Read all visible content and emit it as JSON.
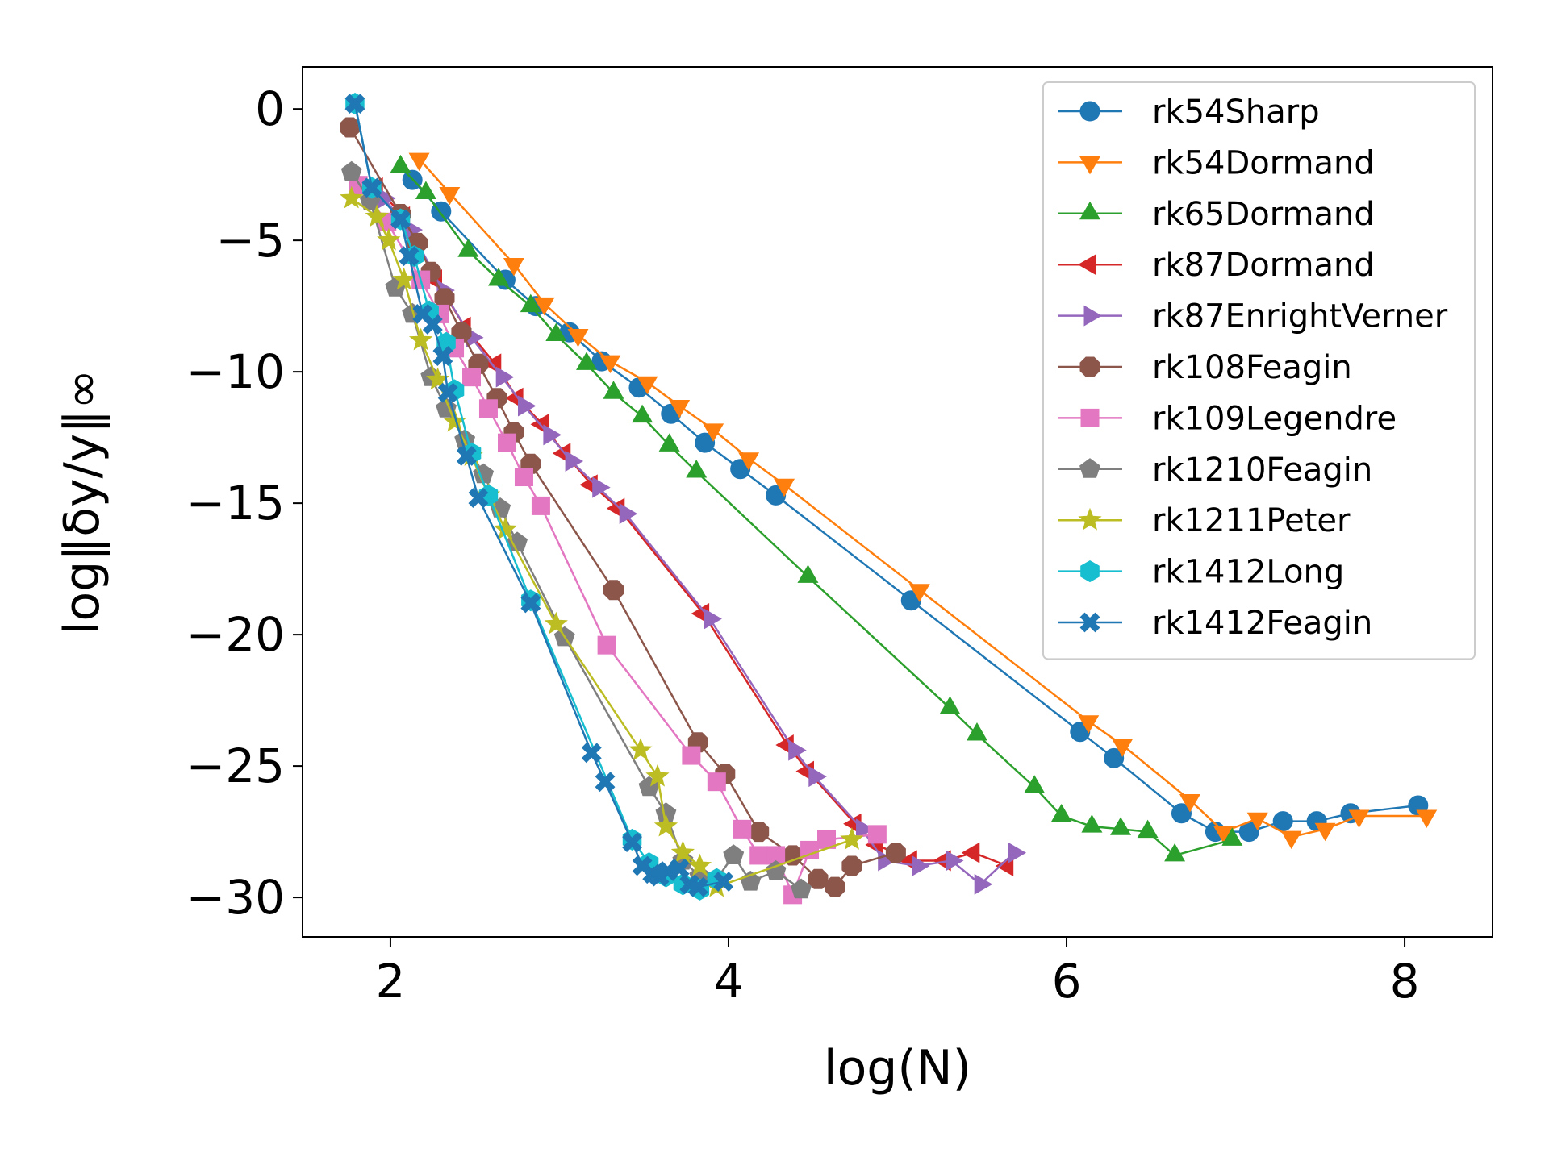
{
  "chart_data": {
    "type": "line",
    "xlabel": "log(N)",
    "ylabel": "log‖δy/y‖∞",
    "xlim": [
      1.48,
      8.52
    ],
    "ylim": [
      -31.5,
      1.6
    ],
    "xticks": [
      2,
      4,
      6,
      8
    ],
    "yticks": [
      0,
      -5,
      -10,
      -15,
      -20,
      -25,
      -30
    ],
    "xtick_labels": [
      "2",
      "4",
      "6",
      "8"
    ],
    "ytick_labels": [
      "0",
      "−5",
      "−10",
      "−15",
      "−20",
      "−25",
      "−30"
    ],
    "grid": false,
    "legend_position": "top-right",
    "series": [
      {
        "name": "rk54Sharp",
        "color": "#1f77b4",
        "marker": "circle",
        "x": [
          2.13,
          2.3,
          2.68,
          2.86,
          3.06,
          3.25,
          3.47,
          3.66,
          3.86,
          4.07,
          4.28,
          5.08,
          6.08,
          6.28,
          6.68,
          6.88,
          7.08,
          7.28,
          7.48,
          7.68,
          8.08
        ],
        "y": [
          -2.7,
          -3.9,
          -6.5,
          -7.5,
          -8.5,
          -9.6,
          -10.6,
          -11.6,
          -12.7,
          -13.7,
          -14.7,
          -18.7,
          -23.7,
          -24.7,
          -26.8,
          -27.5,
          -27.5,
          -27.1,
          -27.1,
          -26.8,
          -26.5
        ]
      },
      {
        "name": "rk54Dormand",
        "color": "#ff7f0e",
        "marker": "triangle-down",
        "x": [
          2.17,
          2.35,
          2.73,
          2.91,
          3.11,
          3.3,
          3.52,
          3.71,
          3.91,
          4.12,
          4.33,
          5.13,
          6.13,
          6.33,
          6.73,
          6.93,
          7.13,
          7.33,
          7.53,
          7.73,
          8.13
        ],
        "y": [
          -1.9,
          -3.2,
          -5.9,
          -7.4,
          -8.6,
          -9.6,
          -10.4,
          -11.3,
          -12.2,
          -13.3,
          -14.3,
          -18.3,
          -23.3,
          -24.2,
          -26.3,
          -27.5,
          -27.0,
          -27.7,
          -27.4,
          -26.9,
          -26.9
        ]
      },
      {
        "name": "rk65Dormand",
        "color": "#2ca02c",
        "marker": "triangle-up",
        "x": [
          2.06,
          2.21,
          2.46,
          2.64,
          2.83,
          2.98,
          3.16,
          3.32,
          3.49,
          3.65,
          3.81,
          4.47,
          5.31,
          5.47,
          5.81,
          5.97,
          6.15,
          6.32,
          6.48,
          6.64,
          6.98
        ],
        "y": [
          -2.2,
          -3.2,
          -5.4,
          -6.5,
          -7.5,
          -8.6,
          -9.7,
          -10.8,
          -11.7,
          -12.8,
          -13.8,
          -17.8,
          -22.8,
          -23.8,
          -25.8,
          -26.9,
          -27.3,
          -27.4,
          -27.5,
          -28.4,
          -27.8
        ]
      },
      {
        "name": "rk87Dormand",
        "color": "#d62728",
        "marker": "triangle-left",
        "x": [
          1.92,
          2.08,
          2.27,
          2.44,
          2.62,
          2.75,
          2.9,
          3.03,
          3.19,
          3.35,
          3.85,
          4.35,
          4.47,
          4.75,
          4.88,
          5.08,
          5.28,
          5.45,
          5.65
        ],
        "y": [
          -3.0,
          -4.1,
          -6.5,
          -8.3,
          -9.7,
          -11.0,
          -12.0,
          -13.1,
          -14.3,
          -15.2,
          -19.2,
          -24.2,
          -25.2,
          -27.2,
          -28.0,
          -28.6,
          -28.6,
          -28.3,
          -28.8
        ]
      },
      {
        "name": "rk87EnrightVerner",
        "color": "#9467bd",
        "marker": "triangle-right",
        "x": [
          1.96,
          2.12,
          2.31,
          2.48,
          2.66,
          2.79,
          2.94,
          3.07,
          3.23,
          3.39,
          3.89,
          4.39,
          4.51,
          4.79,
          4.92,
          5.12,
          5.32,
          5.49,
          5.69
        ],
        "y": [
          -3.4,
          -4.6,
          -6.9,
          -8.7,
          -10.2,
          -11.3,
          -12.4,
          -13.4,
          -14.4,
          -15.4,
          -19.4,
          -24.4,
          -25.4,
          -27.4,
          -28.6,
          -28.8,
          -28.6,
          -29.5,
          -28.3
        ]
      },
      {
        "name": "rk108Feagin",
        "color": "#8c564b",
        "marker": "octagon",
        "x": [
          1.76,
          2.06,
          2.16,
          2.24,
          2.32,
          2.42,
          2.52,
          2.63,
          2.73,
          2.83,
          3.32,
          3.82,
          3.98,
          4.18,
          4.38,
          4.53,
          4.63,
          4.73,
          4.99
        ],
        "y": [
          -0.7,
          -4.0,
          -5.1,
          -6.2,
          -7.2,
          -8.5,
          -9.7,
          -11.0,
          -12.3,
          -13.5,
          -18.3,
          -24.1,
          -25.3,
          -27.5,
          -28.4,
          -29.3,
          -29.6,
          -28.8,
          -28.3
        ]
      },
      {
        "name": "rk109Legendre",
        "color": "#e377c2",
        "marker": "square",
        "x": [
          1.81,
          1.98,
          2.18,
          2.29,
          2.38,
          2.48,
          2.58,
          2.69,
          2.79,
          2.89,
          3.28,
          3.78,
          3.93,
          4.08,
          4.18,
          4.28,
          4.38,
          4.48,
          4.58,
          4.88
        ],
        "y": [
          -2.9,
          -4.3,
          -6.5,
          -7.8,
          -9.1,
          -10.2,
          -11.4,
          -12.7,
          -14.0,
          -15.1,
          -20.4,
          -24.6,
          -25.6,
          -27.4,
          -28.4,
          -28.4,
          -29.9,
          -28.2,
          -27.8,
          -27.6
        ]
      },
      {
        "name": "rk1210Feagin",
        "color": "#7f7f7f",
        "marker": "pentagon",
        "x": [
          1.77,
          1.88,
          2.03,
          2.13,
          2.24,
          2.33,
          2.44,
          2.55,
          2.65,
          2.75,
          3.03,
          3.53,
          3.63,
          3.73,
          3.83,
          3.93,
          4.03,
          4.13,
          4.28,
          4.43
        ],
        "y": [
          -2.4,
          -3.5,
          -6.8,
          -7.8,
          -10.2,
          -11.4,
          -12.6,
          -13.9,
          -15.2,
          -16.5,
          -20.1,
          -25.8,
          -26.8,
          -28.6,
          -29.2,
          -29.3,
          -28.4,
          -29.4,
          -29.0,
          -29.7
        ]
      },
      {
        "name": "rk1211Peter",
        "color": "#bcbd22",
        "marker": "star",
        "x": [
          1.77,
          1.92,
          1.99,
          2.08,
          2.18,
          2.28,
          2.38,
          2.48,
          2.58,
          2.68,
          2.98,
          3.48,
          3.58,
          3.63,
          3.73,
          3.83,
          3.93,
          4.73
        ],
        "y": [
          -3.4,
          -4.1,
          -5.0,
          -6.5,
          -8.8,
          -10.3,
          -11.9,
          -13.2,
          -14.7,
          -16.0,
          -19.6,
          -24.4,
          -25.4,
          -27.3,
          -28.3,
          -28.8,
          -29.6,
          -27.8
        ]
      },
      {
        "name": "rk1412Long",
        "color": "#17becf",
        "marker": "hexagon",
        "x": [
          1.79,
          1.89,
          2.06,
          2.14,
          2.23,
          2.33,
          2.38,
          2.48,
          2.58,
          2.83,
          3.43,
          3.53,
          3.63,
          3.73,
          3.83,
          3.93
        ],
        "y": [
          0.2,
          -3.0,
          -4.2,
          -5.6,
          -7.7,
          -8.9,
          -10.7,
          -13.1,
          -14.7,
          -18.7,
          -27.8,
          -28.7,
          -29.2,
          -29.5,
          -29.7,
          -29.3
        ]
      },
      {
        "name": "rk1412Feagin",
        "color": "#1f77b4",
        "marker": "x-filled",
        "x": [
          1.79,
          1.89,
          2.06,
          2.11,
          2.19,
          2.25,
          2.31,
          2.34,
          2.45,
          2.52,
          2.83,
          3.19,
          3.27,
          3.43,
          3.49,
          3.55,
          3.59,
          3.64,
          3.71,
          3.77,
          3.82,
          3.97
        ],
        "y": [
          0.2,
          -3.0,
          -4.2,
          -5.6,
          -7.8,
          -8.2,
          -9.4,
          -10.8,
          -13.2,
          -14.8,
          -18.8,
          -24.5,
          -25.6,
          -27.9,
          -28.8,
          -29.1,
          -29.2,
          -29.0,
          -28.9,
          -29.5,
          -29.6,
          -29.4
        ]
      }
    ]
  }
}
